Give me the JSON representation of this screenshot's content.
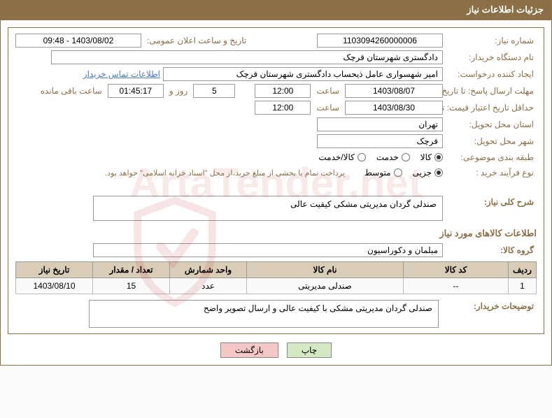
{
  "header": {
    "title": "جزئیات اطلاعات نیاز"
  },
  "form": {
    "need_no_label": "شماره نیاز:",
    "need_no": "1103094260000006",
    "announce_label": "تاریخ و ساعت اعلان عمومی:",
    "announce_value": "1403/08/02 - 09:48",
    "buyer_org_label": "نام دستگاه خریدار:",
    "buyer_org": "دادگستری شهرستان قرچک",
    "requester_label": "ایجاد کننده درخواست:",
    "requester": "امیر شهسواری عامل ذیحساب دادگستری شهرستان قرچک",
    "contact_link": "اطلاعات تماس خریدار",
    "deadline_label": "مهلت ارسال پاسخ: تا تاریخ:",
    "deadline_date": "1403/08/07",
    "time_label": "ساعت",
    "deadline_time": "12:00",
    "days_label": "روز و",
    "days_remaining": "5",
    "countdown": "01:45:17",
    "remaining_label": "ساعت باقی مانده",
    "min_valid_label": "حداقل تاریخ اعتبار قیمت: تا تاریخ:",
    "min_valid_date": "1403/08/30",
    "min_valid_time": "12:00",
    "province_label": "استان محل تحویل:",
    "province": "تهران",
    "city_label": "شهر محل تحویل:",
    "city": "قرچک",
    "category_label": "طبقه بندی موضوعی:",
    "cat_options": {
      "goods": "کالا",
      "service": "خدمت",
      "goods_service": "کالا/خدمت"
    },
    "cat_selected": "goods",
    "process_label": "نوع فرآیند خرید :",
    "proc_options": {
      "partial": "جزیی",
      "medium": "متوسط"
    },
    "proc_selected": "partial",
    "payment_note": "پرداخت تمام یا بخشی از مبلغ خرید،از محل \"اسناد خزانه اسلامی\" خواهد بود."
  },
  "need": {
    "title_label": "شرح کلی نیاز:",
    "title_value": "صندلی گردان مدیریتی مشکی کیفیت عالی",
    "items_section": "اطلاعات کالاهای مورد نیاز",
    "group_label": "گروه کالا:",
    "group_value": "مبلمان و دکوراسیون"
  },
  "table": {
    "columns": [
      "ردیف",
      "کد کالا",
      "نام کالا",
      "واحد شمارش",
      "تعداد / مقدار",
      "تاریخ نیاز"
    ],
    "col_widths": [
      "40px",
      "150px",
      "auto",
      "110px",
      "110px",
      "110px"
    ],
    "rows": [
      [
        "1",
        "--",
        "صندلی مدیریتی",
        "عدد",
        "15",
        "1403/08/10"
      ]
    ]
  },
  "buyer_note": {
    "label": "توضیحات خریدار:",
    "value": "صندلی گردان مدیریتی مشکی با کیفیت عالی و ارسال تصویر واضح"
  },
  "buttons": {
    "print": "چاپ",
    "back": "بازگشت"
  },
  "style": {
    "header_bg": "#8b6f47",
    "label_color": "#8b6f47",
    "th_bg": "#d9cdb7",
    "link_color": "#4a7abc"
  }
}
